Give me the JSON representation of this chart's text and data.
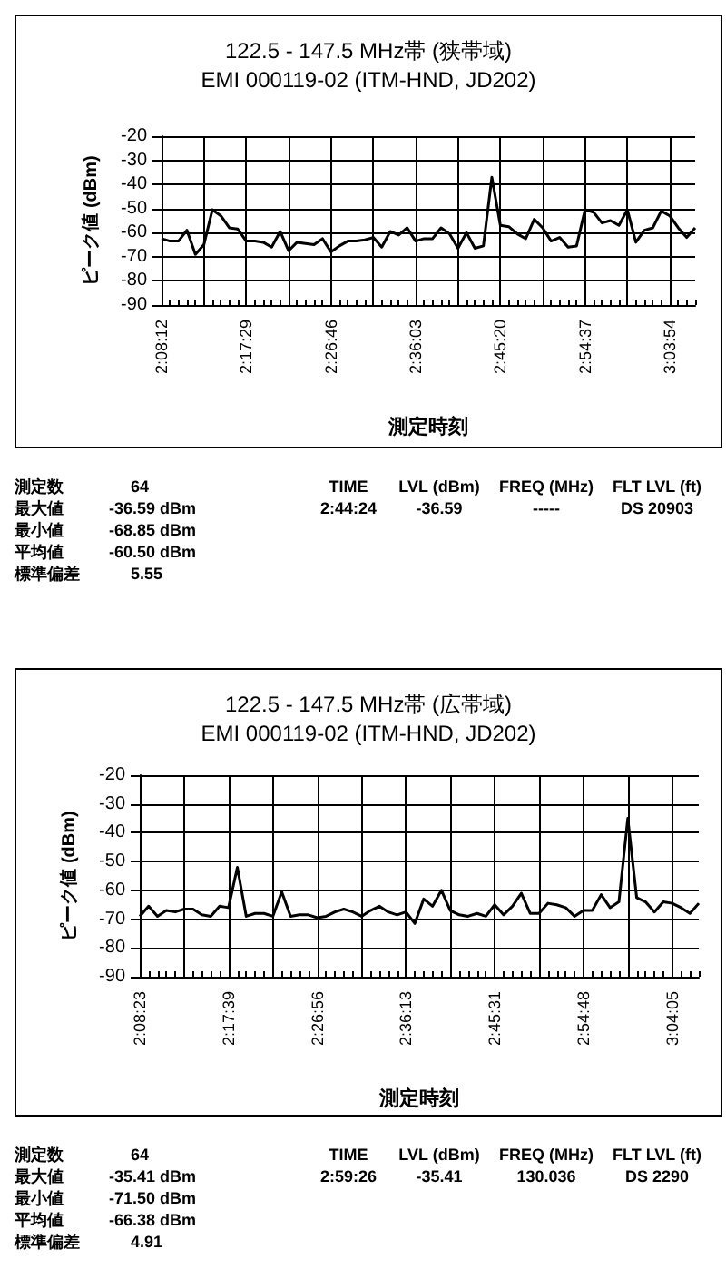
{
  "chart_data": [
    {
      "type": "line",
      "title": "122.5 - 147.5 MHz帯 (狭帯域)",
      "subtitle": "EMI 000119-02 (ITM-HND, JD202)",
      "xlabel": "測定時刻",
      "ylabel": "ピーク値 (dBm)",
      "categories": [
        "2:08:12",
        null,
        null,
        null,
        null,
        null,
        null,
        null,
        null,
        null,
        "2:17:29",
        null,
        null,
        null,
        null,
        null,
        null,
        null,
        null,
        null,
        "2:26:46",
        null,
        null,
        null,
        null,
        null,
        null,
        null,
        null,
        null,
        "2:36:03",
        null,
        null,
        null,
        null,
        null,
        null,
        null,
        null,
        null,
        "2:45:20",
        null,
        null,
        null,
        null,
        null,
        null,
        null,
        null,
        null,
        "2:54:37",
        null,
        null,
        null,
        null,
        null,
        null,
        null,
        null,
        null,
        "3:03:54",
        null,
        null,
        null
      ],
      "series": [
        {
          "color": "#000000",
          "values": [
            -62.5,
            -63.5,
            -63.5,
            -59,
            -69,
            -65,
            -50.5,
            -53,
            -58,
            -58.5,
            -63.5,
            -63.5,
            -64,
            -66,
            -59.5,
            -67.5,
            -64,
            -64.5,
            -65,
            -62.5,
            -68,
            -65.5,
            -63.5,
            -63.5,
            -63,
            -62,
            -66,
            -59.5,
            -61,
            -58,
            -63.5,
            -62.5,
            -62.5,
            -58,
            -60.5,
            -66.5,
            -60,
            -66.5,
            -65.5,
            -37,
            -57,
            -57.5,
            -60.5,
            -62.5,
            -54.5,
            -58,
            -63.5,
            -62,
            -66,
            -65.5,
            -50.5,
            -51.5,
            -56,
            -55,
            -57,
            -50.5,
            -64,
            -59,
            -58,
            -51,
            -53,
            -58,
            -62,
            -58
          ]
        }
      ],
      "ylim": [
        -90,
        -20
      ],
      "yticks": [
        -90,
        -80,
        -70,
        -60,
        -50,
        -40,
        -30,
        -20
      ],
      "grid": true,
      "marker": "none",
      "line_style": "solid",
      "annotations": [
        "測定数",
        "64",
        "最大値",
        "-36.59  dBm",
        "最小値",
        "-68.85  dBm",
        "平均値",
        "-60.50  dBm",
        "標準偏差",
        "5.55",
        "TIME",
        "LVL (dBm)",
        "FREQ (MHz)",
        "FLT LVL (ft)",
        "2:44:24",
        "-36.59",
        "-----",
        "DS 20903"
      ]
    },
    {
      "type": "line",
      "title": "122.5 - 147.5 MHz帯 (広帯域)",
      "subtitle": "EMI 000119-02 (ITM-HND, JD202)",
      "xlabel": "測定時刻",
      "ylabel": "ピーク値 (dBm)",
      "categories": [
        "2:08:23",
        null,
        null,
        null,
        null,
        null,
        null,
        null,
        null,
        null,
        "2:17:39",
        null,
        null,
        null,
        null,
        null,
        null,
        null,
        null,
        null,
        "2:26:56",
        null,
        null,
        null,
        null,
        null,
        null,
        null,
        null,
        null,
        "2:36:13",
        null,
        null,
        null,
        null,
        null,
        null,
        null,
        null,
        null,
        "2:45:31",
        null,
        null,
        null,
        null,
        null,
        null,
        null,
        null,
        null,
        "2:54:48",
        null,
        null,
        null,
        null,
        null,
        null,
        null,
        null,
        null,
        "3:04:05",
        null,
        null,
        null
      ],
      "series": [
        {
          "color": "#000000",
          "values": [
            -69,
            -65.5,
            -69,
            -67,
            -67.5,
            -66.5,
            -66.5,
            -68.5,
            -69,
            -65.5,
            -66,
            -52,
            -69,
            -68,
            -68,
            -69,
            -60.5,
            -69,
            -68.5,
            -68.5,
            -69.5,
            -69,
            -67.5,
            -66.5,
            -67.5,
            -69,
            -67,
            -65.5,
            -67.5,
            -68.5,
            -67.5,
            -71.5,
            -63,
            -65.5,
            -60,
            -67,
            -68.5,
            -69,
            -68,
            -69,
            -65,
            -68.5,
            -65.5,
            -61,
            -68,
            -68,
            -64.5,
            -65,
            -66,
            -69,
            -67,
            -67,
            -61.5,
            -66,
            -64,
            -35,
            -62.5,
            -64,
            -67.5,
            -64,
            -64.5,
            -66,
            -68,
            -64.5
          ]
        }
      ],
      "ylim": [
        -90,
        -20
      ],
      "yticks": [
        -90,
        -80,
        -70,
        -60,
        -50,
        -40,
        -30,
        -20
      ],
      "grid": true,
      "marker": "none",
      "line_style": "solid",
      "annotations": [
        "測定数",
        "64",
        "最大値",
        "-35.41  dBm",
        "最小値",
        "-71.50  dBm",
        "平均値",
        "-66.38  dBm",
        "標準偏差",
        "4.91",
        "TIME",
        "LVL (dBm)",
        "FREQ (MHz)",
        "FLT LVL (ft)",
        "2:59:26",
        "-35.41",
        "130.036",
        "DS 2290"
      ]
    }
  ]
}
